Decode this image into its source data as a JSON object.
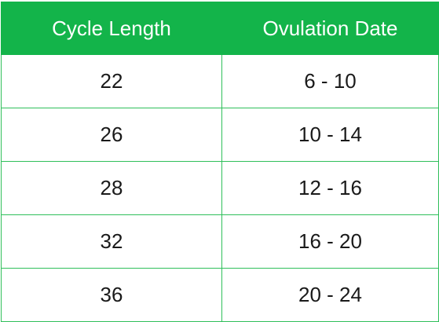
{
  "table": {
    "headers": [
      "Cycle Length",
      "Ovulation Date"
    ],
    "rows": [
      [
        "22",
        "6 - 10"
      ],
      [
        "26",
        "10 - 14"
      ],
      [
        "28",
        "12 - 16"
      ],
      [
        "32",
        "16 - 20"
      ],
      [
        "36",
        "20 - 24"
      ]
    ]
  },
  "colors": {
    "header_background": "#13b44a",
    "header_text": "#ffffff",
    "border": "#2fbf5a",
    "cell_text": "#1a1a1a"
  }
}
